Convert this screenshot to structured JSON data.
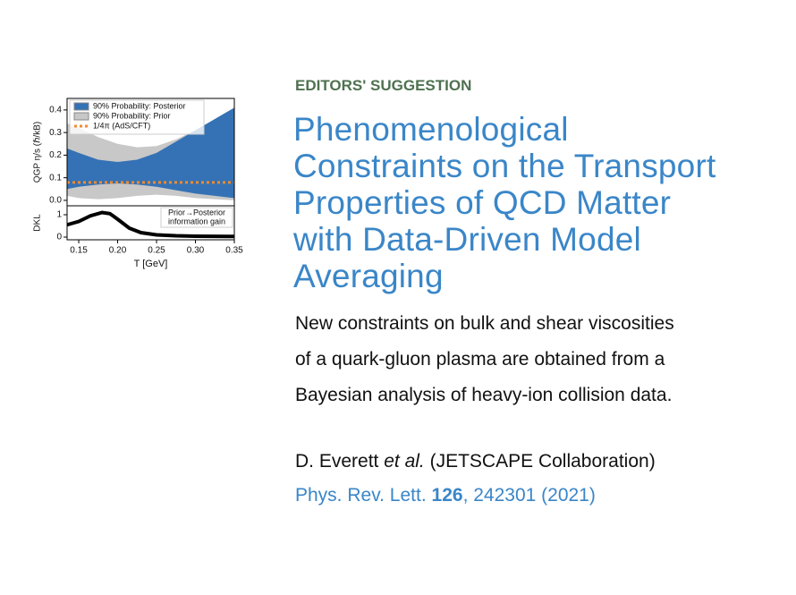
{
  "figure": {
    "top": {
      "ylabel": "QGP η/s (ℏ/kB)",
      "xlim": [
        0.135,
        0.35
      ],
      "ylim": [
        -0.024,
        0.451
      ],
      "yticks": [
        {
          "value": 0,
          "label": "0.0"
        },
        0.1,
        0.2,
        0.3,
        0.4
      ],
      "x": [
        0.135,
        0.15,
        0.175,
        0.2,
        0.225,
        0.25,
        0.275,
        0.3,
        0.325,
        0.35
      ],
      "series": [
        {
          "name": "90% Probability: Posterior",
          "color": "#3472b5",
          "kind": "band",
          "upper": [
            0.23,
            0.21,
            0.18,
            0.17,
            0.18,
            0.21,
            0.26,
            0.31,
            0.36,
            0.41
          ],
          "lower": [
            0.05,
            0.06,
            0.07,
            0.075,
            0.07,
            0.06,
            0.045,
            0.03,
            0.02,
            0.01
          ]
        },
        {
          "name": "90% Probability: Prior",
          "color": "#c8c8c8",
          "kind": "band",
          "upper": [
            0.34,
            0.32,
            0.28,
            0.25,
            0.235,
            0.24,
            0.27,
            0.31,
            0.36,
            0.41
          ],
          "lower": [
            0.02,
            0.01,
            0.005,
            0.01,
            0.02,
            0.025,
            0.02,
            0.01,
            0.005,
            0.0
          ]
        },
        {
          "name": "1/4π (AdS/CFT)",
          "color": "#f28a2e",
          "kind": "line",
          "x": [
            0.135,
            0.35
          ],
          "values": [
            0.0796,
            0.0796
          ]
        }
      ]
    },
    "bottom": {
      "ylabel": "DKL",
      "xlabel": "T [GeV]",
      "annotation": [
        "Prior→Posterior",
        "information gain"
      ],
      "xlim": [
        0.135,
        0.35
      ],
      "ylim": [
        -0.12,
        1.4
      ],
      "yticks": [
        0,
        1
      ],
      "xticks": [
        0.15,
        {
          "value": 0.2,
          "label": "0.20"
        },
        0.25,
        {
          "value": 0.3,
          "label": "0.30"
        },
        0.35
      ],
      "x": [
        0.135,
        0.15,
        0.165,
        0.18,
        0.19,
        0.2,
        0.215,
        0.23,
        0.25,
        0.275,
        0.3,
        0.35
      ],
      "values": [
        0.55,
        0.7,
        0.95,
        1.1,
        1.05,
        0.8,
        0.4,
        0.2,
        0.1,
        0.06,
        0.04,
        0.03
      ],
      "color": "#000000"
    }
  },
  "kicker": "EDITORS' SUGGESTION",
  "title_lines": [
    "Phenomenological",
    "Constraints on the Transport",
    "Properties of QCD Matter",
    "with Data-Driven Model",
    "Averaging"
  ],
  "summary_lines": [
    "New constraints on bulk and shear viscosities",
    "of a quark-gluon plasma are obtained from a",
    "Bayesian analysis of heavy-ion collision data."
  ],
  "authors": {
    "name": "D. Everett",
    "etal": "et al.",
    "collab": "(JETSCAPE Collaboration)"
  },
  "citation": {
    "journal": "Phys. Rev. Lett.",
    "volume": "126",
    "rest": ", 242301 (2021)"
  }
}
